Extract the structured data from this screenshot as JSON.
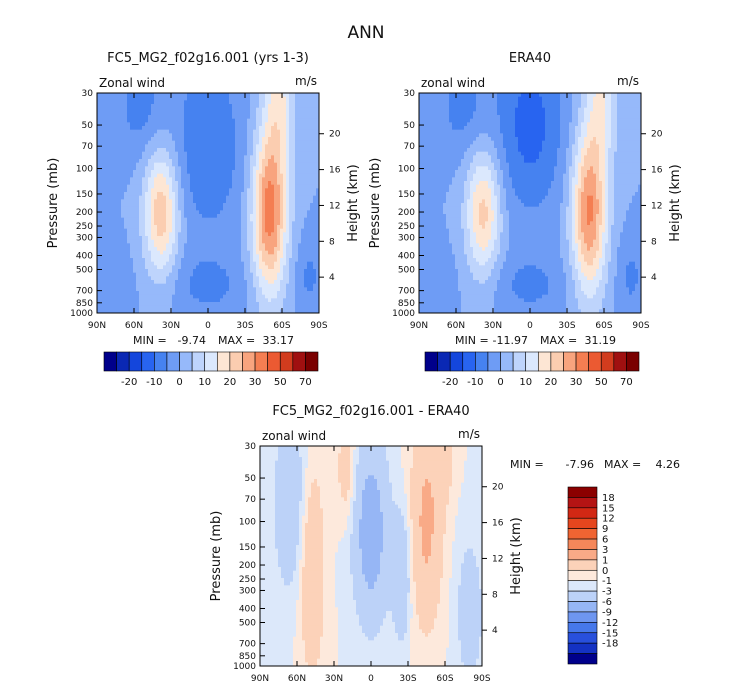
{
  "page_title": "ANN",
  "chart_data": [
    {
      "type": "heatmap",
      "title": "FC5_MG2_f02g16.001 (yrs 1-3)",
      "variable_label": "Zonal wind",
      "units_label": "m/s",
      "ylabel": "Pressure (mb)",
      "ylabel_right": "Height (km)",
      "x_ticks": [
        "90N",
        "60N",
        "30N",
        "0",
        "30S",
        "60S",
        "90S"
      ],
      "y_ticks": [
        "30",
        "50",
        "70",
        "100",
        "150",
        "200",
        "250",
        "300",
        "400",
        "500",
        "700",
        "850",
        "1000"
      ],
      "y_ticks_right": [
        "20",
        "16",
        "12",
        "8",
        "4"
      ],
      "min_label": "MIN =",
      "min_value": "-9.74",
      "max_label": "MAX =",
      "max_value": "33.17",
      "levels": [
        "-20",
        "-10",
        "0",
        "10",
        "20",
        "30",
        "50",
        "70"
      ],
      "colors": [
        "#00008b",
        "#0a28b4",
        "#1446dc",
        "#2864f0",
        "#4682f0",
        "#6e9cf5",
        "#96b9fa",
        "#bed4fc",
        "#dbe8fd",
        "#fde6d4",
        "#fbcdb0",
        "#f8a47e",
        "#f47e52",
        "#eb5a32",
        "#d23c1e",
        "#a01010",
        "#7a0000"
      ],
      "jets": [
        {
          "name": "nh-westerly-jet",
          "lat": 38,
          "p_mb": 200,
          "peak_ms": 24
        },
        {
          "name": "sh-westerly-jet",
          "lat": -50,
          "p_mb": 200,
          "peak_ms": 33
        },
        {
          "name": "tropical-easterlies",
          "lat": 0,
          "p_mb": 70,
          "peak_ms": -9.7
        }
      ]
    },
    {
      "type": "heatmap",
      "title": "ERA40",
      "variable_label": "zonal wind",
      "units_label": "m/s",
      "ylabel": "Pressure (mb)",
      "ylabel_right": "Height (km)",
      "x_ticks": [
        "90N",
        "60N",
        "30N",
        "0",
        "30S",
        "60S",
        "90S"
      ],
      "y_ticks": [
        "30",
        "50",
        "70",
        "100",
        "150",
        "200",
        "250",
        "300",
        "400",
        "500",
        "700",
        "850",
        "1000"
      ],
      "y_ticks_right": [
        "20",
        "16",
        "12",
        "8",
        "4"
      ],
      "min_label": "MIN =",
      "min_value": "-11.97",
      "max_label": "MAX =",
      "max_value": "31.19",
      "levels": [
        "-20",
        "-10",
        "0",
        "10",
        "20",
        "30",
        "50",
        "70"
      ],
      "colors": [
        "#00008b",
        "#0a28b4",
        "#1446dc",
        "#2864f0",
        "#4682f0",
        "#6e9cf5",
        "#96b9fa",
        "#bed4fc",
        "#dbe8fd",
        "#fde6d4",
        "#fbcdb0",
        "#f8a47e",
        "#f47e52",
        "#eb5a32",
        "#d23c1e",
        "#a01010",
        "#7a0000"
      ],
      "jets": [
        {
          "name": "nh-westerly-jet",
          "lat": 38,
          "p_mb": 200,
          "peak_ms": 22
        },
        {
          "name": "sh-westerly-jet",
          "lat": -48,
          "p_mb": 200,
          "peak_ms": 31
        },
        {
          "name": "tropical-easterlies",
          "lat": 0,
          "p_mb": 50,
          "peak_ms": -12
        }
      ]
    },
    {
      "type": "heatmap",
      "title": "FC5_MG2_f02g16.001 - ERA40",
      "variable_label": "zonal wind",
      "units_label": "m/s",
      "ylabel": "Pressure (mb)",
      "ylabel_right": "Height (km)",
      "x_ticks": [
        "90N",
        "60N",
        "30N",
        "0",
        "30S",
        "60S",
        "90S"
      ],
      "y_ticks": [
        "30",
        "50",
        "70",
        "100",
        "150",
        "200",
        "250",
        "300",
        "400",
        "500",
        "700",
        "850",
        "1000"
      ],
      "y_ticks_right": [
        "20",
        "16",
        "12",
        "8",
        "4"
      ],
      "min_label": "MIN =",
      "min_value": "-7.96",
      "max_label": "MAX =",
      "max_value": "4.26",
      "levels": [
        "18",
        "15",
        "12",
        "9",
        "6",
        "3",
        "1",
        "0",
        "-1",
        "-3",
        "-6",
        "-9",
        "-12",
        "-15",
        "-18"
      ],
      "colors": [
        "#8b0000",
        "#b41414",
        "#d22814",
        "#e6461e",
        "#f06432",
        "#f5875a",
        "#f9aa87",
        "#fcd2b9",
        "#fde9dc",
        "#dce8fa",
        "#bcd2f8",
        "#96b6f5",
        "#6e96f0",
        "#4678eb",
        "#2850dc",
        "#1432c3",
        "#00008b"
      ]
    }
  ]
}
